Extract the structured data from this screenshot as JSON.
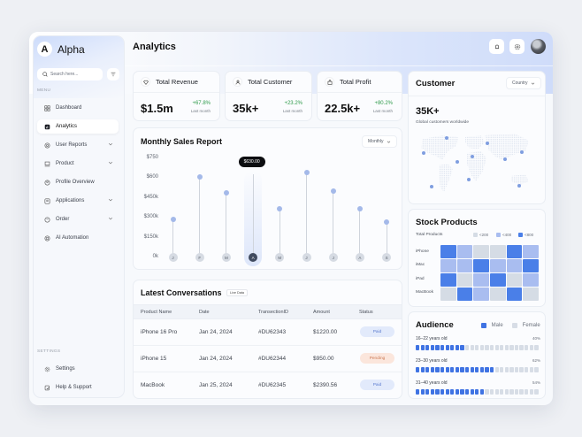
{
  "app": {
    "name": "Alpha"
  },
  "sidebar": {
    "search_placeholder": "Search here...",
    "menu_label": "MENU",
    "items": [
      {
        "label": "Dashboard",
        "icon": "grid-icon",
        "chevron": false,
        "active": false
      },
      {
        "label": "Analytics",
        "icon": "analytics-icon",
        "chevron": false,
        "active": true
      },
      {
        "label": "User Reports",
        "icon": "user-reports-icon",
        "chevron": true,
        "active": false
      },
      {
        "label": "Product",
        "icon": "product-icon",
        "chevron": true,
        "active": false
      },
      {
        "label": "Profile Overview",
        "icon": "profile-icon",
        "chevron": false,
        "active": false
      },
      {
        "label": "Applications",
        "icon": "applications-icon",
        "chevron": true,
        "active": false
      },
      {
        "label": "Order",
        "icon": "order-icon",
        "chevron": true,
        "active": false
      },
      {
        "label": "AI Automation",
        "icon": "ai-icon",
        "chevron": false,
        "active": false
      }
    ],
    "settings_label": "SETTINGS",
    "settings_items": [
      {
        "label": "Settings",
        "icon": "gear-icon"
      },
      {
        "label": "Help & Support",
        "icon": "help-icon"
      }
    ]
  },
  "header": {
    "title": "Analytics",
    "icons": [
      "bell-icon",
      "settings-icon",
      "avatar"
    ]
  },
  "stats": [
    {
      "label": "Total Revenue",
      "value": "$1.5m",
      "change": "+67.8%",
      "period": "Last month",
      "icon": "diamond-icon"
    },
    {
      "label": "Total Customer",
      "value": "35k+",
      "change": "+23.2%",
      "period": "Last month",
      "icon": "user-icon"
    },
    {
      "label": "Total Profit",
      "value": "22.5k+",
      "change": "+80.2%",
      "period": "Last month",
      "icon": "bag-icon"
    }
  ],
  "sales": {
    "title": "Monthly Sales Report",
    "dropdown": "Monthly",
    "tooltip": "$630.00",
    "active_index": 3
  },
  "chart_data": {
    "type": "lollipop",
    "title": "Monthly Sales Report",
    "categories": [
      "J",
      "F",
      "M",
      "A",
      "M",
      "J",
      "J",
      "A",
      "S"
    ],
    "values": [
      290,
      610,
      490,
      630,
      370,
      640,
      500,
      370,
      270
    ],
    "yticks": [
      "$750",
      "$600",
      "$450k",
      "$300k",
      "$150k",
      "0k"
    ],
    "ylim": [
      0,
      750
    ],
    "highlight": {
      "category_index": 3,
      "label": "$630.00"
    }
  },
  "conversations": {
    "title": "Latest Conversations",
    "badge": "Live Data",
    "columns": [
      "Product Name",
      "Date",
      "TransectionID",
      "Amount",
      "Status"
    ],
    "rows": [
      {
        "product": "iPhone 16 Pro",
        "date": "Jan 24, 2024",
        "id": "#DU62343",
        "amount": "$1220.00",
        "status": "Paid"
      },
      {
        "product": "iPhone 15",
        "date": "Jan 24, 2024",
        "id": "#DU62344",
        "amount": "$950.00",
        "status": "Pending"
      },
      {
        "product": "MacBook",
        "date": "Jan 25, 2024",
        "id": "#DU62345",
        "amount": "$2390.56",
        "status": "Paid"
      }
    ]
  },
  "customer": {
    "title": "Customer",
    "dropdown": "Country",
    "value": "35K+",
    "subtitle": "Global customers worldwide"
  },
  "stock": {
    "title": "Stock Products",
    "subtitle": "Total Products",
    "legend": [
      {
        "label": "<200",
        "color": "#d5dce5"
      },
      {
        "label": "<400",
        "color": "#a9bdf0"
      },
      {
        "label": "<800",
        "color": "#4a7fe8"
      }
    ],
    "rows": [
      "iPhone",
      "iMac",
      "iPad",
      "MacBook"
    ],
    "levels": [
      [
        2,
        1,
        0,
        0,
        2,
        1
      ],
      [
        1,
        1,
        2,
        1,
        1,
        2
      ],
      [
        2,
        0,
        1,
        2,
        0,
        1
      ],
      [
        0,
        2,
        1,
        0,
        2,
        0
      ]
    ]
  },
  "audience": {
    "title": "Audience",
    "legend": [
      {
        "label": "Male",
        "color": "#3f73e3"
      },
      {
        "label": "Female",
        "color": "#d7dde6"
      }
    ],
    "groups": [
      {
        "label": "16–22 years old",
        "pct": "40%",
        "filled": 10
      },
      {
        "label": "23–30 years old",
        "pct": "62%",
        "filled": 16
      },
      {
        "label": "31–40 years old",
        "pct": "54%",
        "filled": 14
      }
    ],
    "segments": 25
  },
  "colors": {
    "accent": "#3f73e3",
    "positive": "#2e9a4a",
    "paid": "#5b7bd0",
    "pending": "#cc7a55"
  }
}
